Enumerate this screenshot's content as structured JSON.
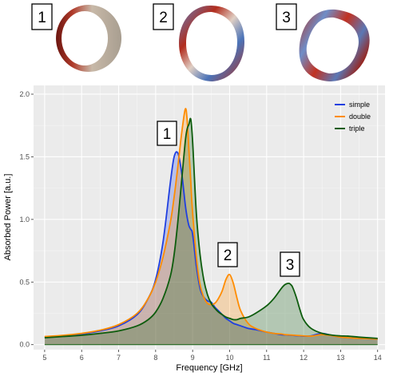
{
  "images": {
    "labels": [
      "1",
      "2",
      "3"
    ],
    "colors": {
      "red": "#b22d1e",
      "blue": "#4b73b8",
      "neutral": "#b7ad9e"
    }
  },
  "chart_data": {
    "type": "area",
    "xlabel": "Frequency [GHz]",
    "ylabel": "Absorbed Power [a.u.]",
    "xlim": [
      4.7,
      14.2
    ],
    "ylim": [
      -0.04,
      2.07
    ],
    "x_ticks": [
      "5",
      "6",
      "7",
      "8",
      "9",
      "10",
      "11",
      "12",
      "13",
      "14"
    ],
    "y_ticks": [
      "0.0",
      "0.5",
      "1.0",
      "1.5",
      "2.0"
    ],
    "grid": true,
    "legend_position": "top-right",
    "x": [
      5.0,
      5.5,
      6.0,
      6.5,
      7.0,
      7.5,
      7.8,
      8.0,
      8.2,
      8.4,
      8.5,
      8.6,
      8.7,
      8.8,
      8.85,
      8.9,
      8.95,
      9.0,
      9.1,
      9.2,
      9.3,
      9.4,
      9.5,
      9.6,
      9.7,
      9.8,
      9.9,
      10.0,
      10.1,
      10.2,
      10.3,
      10.5,
      10.7,
      11.0,
      11.2,
      11.4,
      11.5,
      11.6,
      11.65,
      11.7,
      11.8,
      11.9,
      12.0,
      12.2,
      12.5,
      12.8,
      13.0,
      13.2,
      13.5,
      14.0
    ],
    "series": [
      {
        "name": "simple",
        "color": "#1f3fe0",
        "values": [
          0.06,
          0.07,
          0.085,
          0.11,
          0.15,
          0.24,
          0.37,
          0.52,
          0.82,
          1.3,
          1.5,
          1.53,
          1.38,
          1.12,
          1.02,
          0.95,
          0.92,
          0.88,
          0.63,
          0.45,
          0.38,
          0.35,
          0.34,
          0.3,
          0.27,
          0.24,
          0.21,
          0.19,
          0.17,
          0.16,
          0.15,
          0.13,
          0.12,
          0.1,
          0.09,
          0.08,
          0.078,
          0.076,
          0.075,
          0.074,
          0.072,
          0.07,
          0.068,
          0.07,
          0.09,
          0.07,
          0.06,
          0.055,
          0.05,
          0.045
        ]
      },
      {
        "name": "double",
        "color": "#ff8c00",
        "values": [
          0.065,
          0.075,
          0.09,
          0.115,
          0.16,
          0.25,
          0.37,
          0.5,
          0.7,
          0.98,
          1.18,
          1.42,
          1.68,
          1.88,
          1.8,
          1.55,
          1.3,
          1.05,
          0.7,
          0.48,
          0.38,
          0.33,
          0.32,
          0.33,
          0.37,
          0.43,
          0.52,
          0.56,
          0.49,
          0.37,
          0.27,
          0.17,
          0.13,
          0.1,
          0.09,
          0.085,
          0.08,
          0.078,
          0.077,
          0.076,
          0.074,
          0.072,
          0.07,
          0.068,
          0.08,
          0.07,
          0.06,
          0.055,
          0.05,
          0.045
        ]
      },
      {
        "name": "triple",
        "color": "#0d5c0d",
        "values": [
          0.055,
          0.065,
          0.075,
          0.09,
          0.11,
          0.15,
          0.2,
          0.26,
          0.37,
          0.55,
          0.72,
          0.98,
          1.3,
          1.62,
          1.72,
          1.76,
          1.8,
          1.62,
          1.05,
          0.72,
          0.52,
          0.4,
          0.33,
          0.29,
          0.26,
          0.24,
          0.22,
          0.21,
          0.2,
          0.2,
          0.21,
          0.22,
          0.25,
          0.31,
          0.37,
          0.45,
          0.48,
          0.49,
          0.48,
          0.46,
          0.38,
          0.28,
          0.2,
          0.13,
          0.09,
          0.075,
          0.07,
          0.068,
          0.06,
          0.05
        ]
      }
    ],
    "annotations": [
      "1",
      "2",
      "3"
    ]
  }
}
